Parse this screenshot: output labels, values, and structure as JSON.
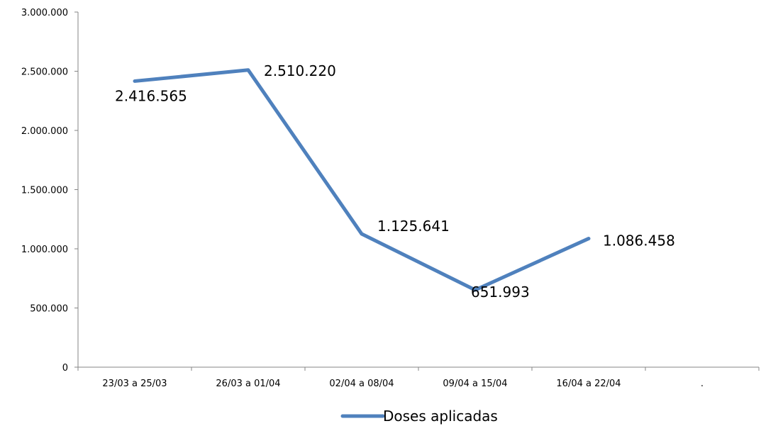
{
  "chart_data": {
    "type": "line",
    "categories": [
      "23/03 a 25/03",
      "26/03 a 01/04",
      "02/04 a 08/04",
      "09/04 a 15/04",
      "16/04 a 22/04",
      "."
    ],
    "series": [
      {
        "name": "Doses aplicadas",
        "values": [
          2416565,
          2510220,
          1125641,
          651993,
          1086458,
          null
        ],
        "data_labels": [
          "2.416.565",
          "2.510.220",
          "1.125.641",
          "651.993",
          "1.086.458",
          null
        ],
        "color": "#4F81BD"
      }
    ],
    "ylim": [
      0,
      3000000
    ],
    "y_ticks": [
      0,
      500000,
      1000000,
      1500000,
      2000000,
      2500000,
      3000000
    ],
    "y_tick_labels": [
      "0",
      "500.000",
      "1.000.000",
      "1.500.000",
      "2.000.000",
      "2.500.000",
      "3.000.000"
    ],
    "grid": false,
    "legend_position": "bottom"
  }
}
